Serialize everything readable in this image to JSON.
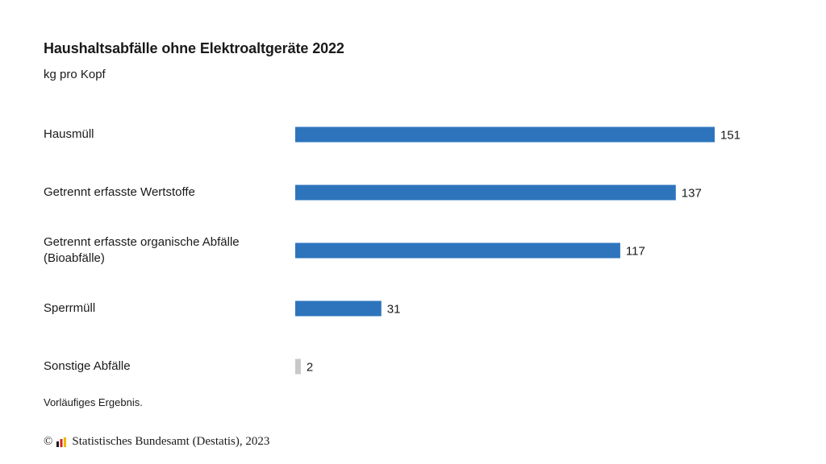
{
  "chart_data": {
    "type": "bar",
    "orientation": "horizontal",
    "title": "Haushaltsabfälle ohne Elektroaltgeräte 2022",
    "subtitle": "kg pro Kopf",
    "categories": [
      "Hausmüll",
      "Getrennt erfasste Wertstoffe",
      "Getrennt erfasste organische Abfälle (Bioabfälle)",
      "Sperrmüll",
      "Sonstige Abfälle"
    ],
    "values": [
      151,
      137,
      117,
      31,
      2
    ],
    "data_labels": [
      "151",
      "137",
      "117",
      "31",
      "2"
    ],
    "bar_colors": [
      "#2e74bd",
      "#2e74bd",
      "#2e74bd",
      "#2e74bd",
      "#c8c8c8"
    ],
    "xlim": [
      0,
      151
    ],
    "grid": false,
    "legend": "none"
  },
  "note": "Vorläufiges Ergebnis.",
  "footer": {
    "copyright_symbol": "©",
    "source": "Statistisches Bundesamt (Destatis), 2023",
    "logo_icon": "destatis-logo-icon",
    "logo_colors": [
      "#1a1a1a",
      "#d9261c",
      "#f2b705"
    ]
  }
}
